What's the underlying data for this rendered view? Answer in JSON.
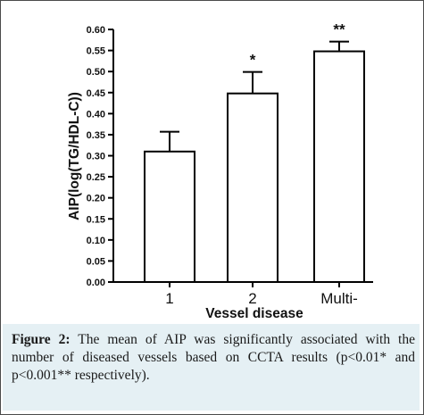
{
  "chart_data": {
    "type": "bar",
    "categories": [
      "1",
      "2",
      "Multi-"
    ],
    "values": [
      0.31,
      0.448,
      0.548
    ],
    "error_upper": [
      0.357,
      0.499,
      0.571
    ],
    "annotations": [
      "",
      "*",
      "**"
    ],
    "xlabel": "Vessel disease",
    "ylabel": "AIP(log(TG/HDL-C))",
    "ylim": [
      0.0,
      0.6
    ],
    "yticks": [
      "0.00",
      "0.05",
      "0.10",
      "0.15",
      "0.20",
      "0.25",
      "0.30",
      "0.35",
      "0.40",
      "0.45",
      "0.50",
      "0.55",
      "0.60"
    ],
    "grid": false,
    "legend": "none"
  },
  "caption": {
    "label": "Figure 2:",
    "text": " The mean of AIP was significantly associated with the number of diseased vessels based on CCTA results (p<0.01* and p<0.001** respectively)."
  },
  "colors": {
    "bar_fill": "#ffffff",
    "bar_stroke": "#000000",
    "caption_background": "#e5f0f4"
  }
}
